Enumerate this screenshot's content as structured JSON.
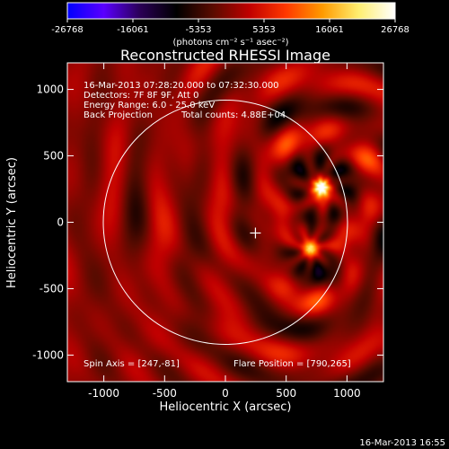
{
  "chart_data": {
    "type": "heatmap",
    "title": "Reconstructed RHESSI Image",
    "xlabel": "Heliocentric X (arcsec)",
    "ylabel": "Heliocentric Y (arcsec)",
    "xlim": [
      -1300,
      1300
    ],
    "ylim": [
      -1200,
      1200
    ],
    "x_ticks": [
      -1000,
      -500,
      0,
      500,
      1000
    ],
    "y_ticks": [
      -1000,
      -500,
      0,
      500,
      1000
    ],
    "colorbar": {
      "unit_label": "(photons cm⁻² s⁻¹ asec⁻²)",
      "min": -26768,
      "max": 26768,
      "ticks": [
        -26768,
        -16061,
        -5353,
        5353,
        16061,
        26768
      ],
      "colors": [
        "#0000ff",
        "#5a00ff",
        "#2a0055",
        "#000000",
        "#5a0b00",
        "#c00000",
        "#ff3800",
        "#ff9a00",
        "#ffee70",
        "#ffffff"
      ]
    },
    "annotations": {
      "time_range": "16-Mar-2013 07:28:20.000 to 07:32:30.000",
      "detectors": "Detectors: 7F 8F 9F, Att 0",
      "energy_range": "Energy Range: 6.0 - 25.0 keV",
      "method": "Back Projection",
      "total_counts": "Total counts: 4.88E+04",
      "spin_axis": "Spin Axis = [247,-81]",
      "flare_position": "Flare Position = [790,265]"
    },
    "solar_disk": {
      "center": [
        0,
        0
      ],
      "radius_arcsec": 960
    },
    "spin_axis_marker": [
      247,
      -81
    ],
    "sources": [
      {
        "x": 790,
        "y": 265,
        "peak": 26768
      },
      {
        "x": 700,
        "y": -200,
        "peak": 20000
      }
    ]
  },
  "timestamp": "16-Mar-2013 16:55"
}
